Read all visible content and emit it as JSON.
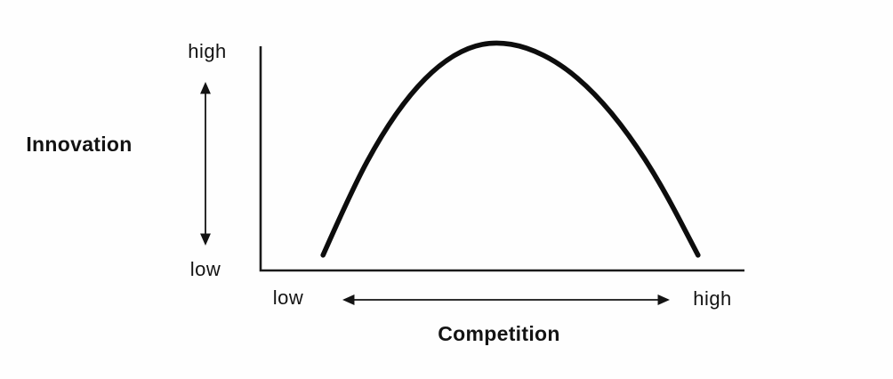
{
  "figure": {
    "background": "#fefefe",
    "ink_color": "#131313",
    "curve_color": "#0d0d0d"
  },
  "chart_data": {
    "type": "line",
    "title": "",
    "xlabel": "Competition",
    "ylabel": "Innovation",
    "tick_labels": {
      "y_top": "high",
      "y_bottom": "low",
      "x_left": "low",
      "x_right": "high"
    },
    "xlim": [
      0,
      1
    ],
    "ylim": [
      0,
      1
    ],
    "grid": false,
    "legend": "none",
    "curve_shape": "inverted-U (innovation peaks at moderate competition)",
    "series": [
      {
        "name": "innovation_vs_competition",
        "x": [
          0.129,
          0.19,
          0.25,
          0.31,
          0.37,
          0.43,
          0.4855,
          0.55,
          0.62,
          0.69,
          0.76,
          0.83,
          0.904
        ],
        "y": [
          0.067,
          0.359,
          0.593,
          0.774,
          0.902,
          0.977,
          1.0,
          0.978,
          0.904,
          0.777,
          0.599,
          0.368,
          0.067
        ]
      }
    ]
  }
}
